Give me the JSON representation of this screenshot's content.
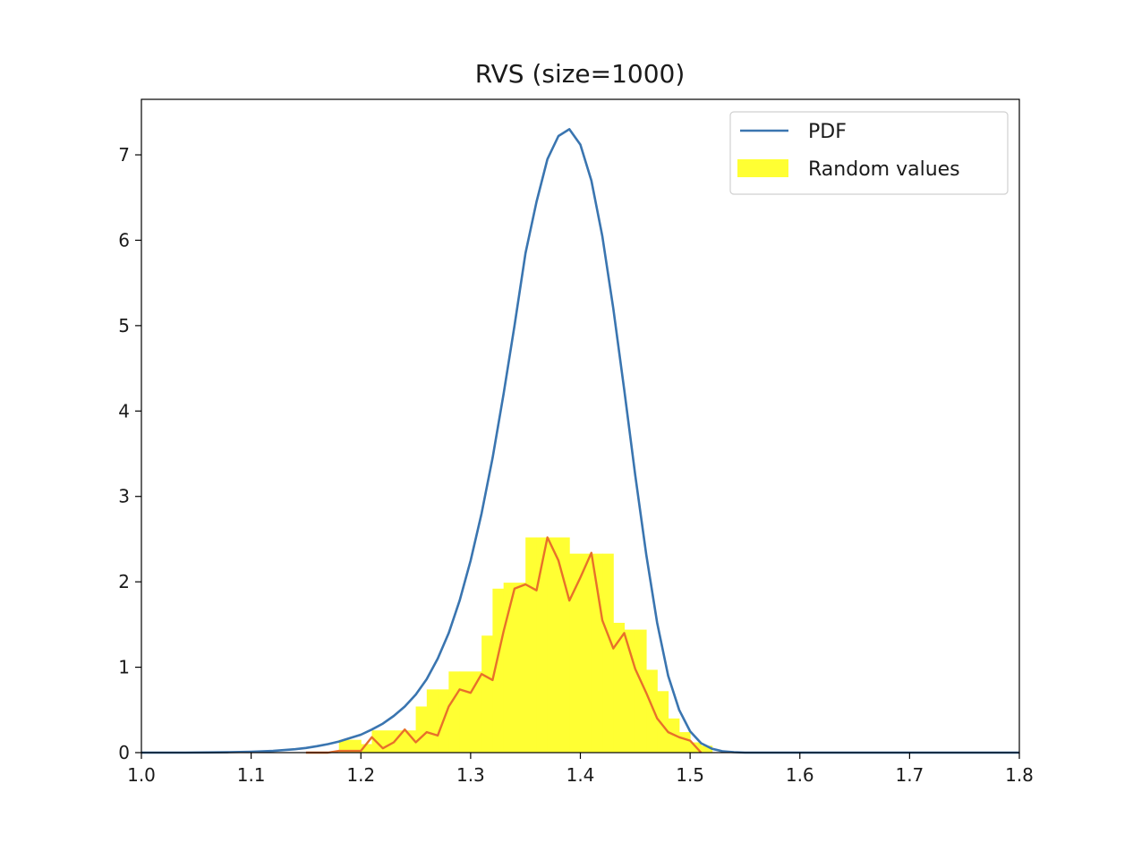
{
  "chart_data": {
    "type": "line",
    "title": "RVS (size=1000)",
    "xlabel": "",
    "ylabel": "",
    "xlim": [
      1.0,
      1.8
    ],
    "ylim": [
      0,
      7.65
    ],
    "x_ticks": [
      1.0,
      1.1,
      1.2,
      1.3,
      1.4,
      1.5,
      1.6,
      1.7,
      1.8
    ],
    "x_tick_labels": [
      "1.0",
      "1.1",
      "1.2",
      "1.3",
      "1.4",
      "1.5",
      "1.6",
      "1.7",
      "1.8"
    ],
    "y_ticks": [
      0,
      1,
      2,
      3,
      4,
      5,
      6,
      7
    ],
    "y_tick_labels": [
      "0",
      "1",
      "2",
      "3",
      "4",
      "5",
      "6",
      "7"
    ],
    "grid": false,
    "legend": {
      "position": "top-right",
      "entries": [
        {
          "label": "PDF",
          "kind": "line",
          "color": "#3a75b0"
        },
        {
          "label": "Random values",
          "kind": "patch",
          "color": "#ffff33"
        }
      ]
    },
    "series": [
      {
        "name": "PDF",
        "kind": "line",
        "color": "#3a75b0",
        "x": [
          1.0,
          1.02,
          1.04,
          1.06,
          1.08,
          1.1,
          1.12,
          1.14,
          1.15,
          1.16,
          1.17,
          1.18,
          1.19,
          1.2,
          1.21,
          1.22,
          1.23,
          1.24,
          1.25,
          1.26,
          1.27,
          1.28,
          1.29,
          1.3,
          1.31,
          1.32,
          1.33,
          1.34,
          1.35,
          1.36,
          1.37,
          1.38,
          1.39,
          1.4,
          1.41,
          1.42,
          1.43,
          1.44,
          1.45,
          1.46,
          1.47,
          1.48,
          1.49,
          1.5,
          1.51,
          1.52,
          1.53,
          1.54,
          1.55,
          1.56,
          1.58,
          1.6,
          1.65,
          1.7,
          1.75,
          1.8
        ],
        "y": [
          0.0,
          0.0,
          0.0,
          0.002,
          0.005,
          0.01,
          0.02,
          0.04,
          0.055,
          0.075,
          0.1,
          0.13,
          0.17,
          0.21,
          0.27,
          0.34,
          0.43,
          0.54,
          0.68,
          0.86,
          1.1,
          1.4,
          1.78,
          2.25,
          2.8,
          3.45,
          4.2,
          5.0,
          5.85,
          6.45,
          6.95,
          7.22,
          7.3,
          7.12,
          6.7,
          6.05,
          5.2,
          4.25,
          3.25,
          2.32,
          1.52,
          0.9,
          0.5,
          0.25,
          0.11,
          0.045,
          0.015,
          0.005,
          0.0,
          0.0,
          0.0,
          0.0,
          0.0,
          0.0,
          0.0,
          0.0
        ]
      },
      {
        "name": "Random values",
        "kind": "histogram",
        "color": "#ffff33",
        "bins": [
          1.18,
          1.2,
          1.21,
          1.23,
          1.25,
          1.26,
          1.27,
          1.28,
          1.29,
          1.31,
          1.32,
          1.33,
          1.35,
          1.36,
          1.37,
          1.39,
          1.41,
          1.42,
          1.43,
          1.44,
          1.45,
          1.46,
          1.47,
          1.48,
          1.49,
          1.5,
          1.51,
          1.52
        ],
        "values": [
          0.15,
          0.1,
          0.26,
          0.26,
          0.54,
          0.74,
          0.74,
          0.95,
          0.95,
          1.37,
          1.92,
          1.99,
          2.52,
          2.52,
          2.52,
          2.33,
          2.33,
          2.33,
          1.52,
          1.44,
          1.44,
          0.97,
          0.72,
          0.4,
          0.24,
          0.12,
          0.08
        ]
      },
      {
        "name": "",
        "kind": "line",
        "color": "#e8702a",
        "x": [
          1.15,
          1.16,
          1.17,
          1.18,
          1.19,
          1.2,
          1.21,
          1.22,
          1.23,
          1.24,
          1.25,
          1.26,
          1.27,
          1.28,
          1.29,
          1.3,
          1.31,
          1.32,
          1.33,
          1.34,
          1.35,
          1.36,
          1.37,
          1.38,
          1.39,
          1.4,
          1.41,
          1.42,
          1.43,
          1.44,
          1.45,
          1.46,
          1.47,
          1.48,
          1.49,
          1.5,
          1.51
        ],
        "y": [
          0.0,
          0.0,
          0.0,
          0.02,
          0.02,
          0.02,
          0.18,
          0.05,
          0.12,
          0.27,
          0.12,
          0.24,
          0.2,
          0.54,
          0.74,
          0.7,
          0.92,
          0.85,
          1.42,
          1.92,
          1.97,
          1.9,
          2.52,
          2.25,
          1.78,
          2.05,
          2.34,
          1.55,
          1.22,
          1.4,
          0.98,
          0.7,
          0.4,
          0.24,
          0.18,
          0.14,
          0.0
        ]
      }
    ]
  }
}
